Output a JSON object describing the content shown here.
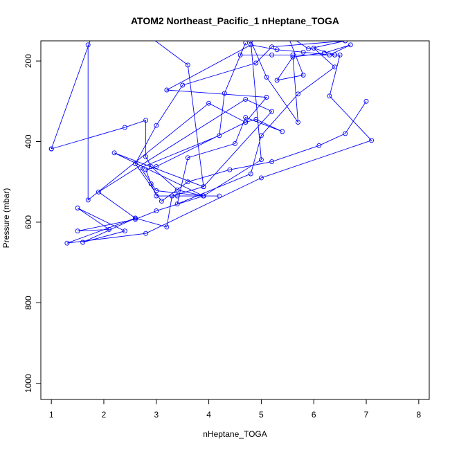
{
  "chart_data": {
    "type": "line",
    "title": "ATOM2 Northeast_Pacific_1 nHeptane_TOGA",
    "xlabel": "nHeptane_TOGA",
    "ylabel": "Pressure (mbar)",
    "xlim": [
      0.8,
      8.2
    ],
    "ylim": [
      150,
      1040
    ],
    "y_reversed": true,
    "x_ticks": [
      1,
      2,
      3,
      4,
      5,
      6,
      7,
      8
    ],
    "y_ticks": [
      200,
      400,
      600,
      800,
      1000
    ],
    "grid": false,
    "legend": "none",
    "color": "#0000ff",
    "marker": "open-circle",
    "series": [
      {
        "points": [
          [
            1.0,
            418
          ],
          [
            2.4,
            365
          ],
          [
            2.8,
            347
          ],
          [
            2.8,
            438
          ],
          [
            2.9,
            462
          ],
          [
            3.4,
            520
          ],
          [
            3.9,
            535
          ],
          [
            3.4,
            535
          ],
          [
            3.3,
            535
          ],
          [
            3.2,
            612
          ],
          [
            2.6,
            590
          ],
          [
            1.6,
            650
          ],
          [
            2.4,
            622
          ],
          [
            1.5,
            565
          ],
          [
            2.1,
            618
          ],
          [
            1.5,
            622
          ],
          [
            2.6,
            593
          ],
          [
            3.0,
            572
          ],
          [
            3.9,
            535
          ],
          [
            4.2,
            535
          ],
          [
            3.0,
            535
          ],
          [
            2.9,
            505
          ],
          [
            2.8,
            470
          ],
          [
            3.0,
            462
          ],
          [
            4.7,
            352
          ],
          [
            4.9,
            345
          ],
          [
            5.4,
            375
          ],
          [
            4.7,
            340
          ],
          [
            4.5,
            405
          ],
          [
            3.6,
            440
          ],
          [
            3.4,
            555
          ],
          [
            4.8,
            480
          ],
          [
            5.0,
            385
          ],
          [
            5.7,
            282
          ],
          [
            6.4,
            215
          ],
          [
            6.0,
            168
          ],
          [
            6.4,
            185
          ],
          [
            6.5,
            185
          ],
          [
            6.3,
            287
          ],
          [
            7.1,
            397
          ],
          [
            5.0,
            490
          ],
          [
            2.8,
            628
          ],
          [
            1.3,
            652
          ],
          [
            2.6,
            590
          ],
          [
            1.9,
            525
          ],
          [
            4.7,
            295
          ],
          [
            5.2,
            325
          ],
          [
            3.9,
            512
          ],
          [
            2.2,
            428
          ],
          [
            3.9,
            535
          ],
          [
            3.0,
            522
          ],
          [
            2.7,
            465
          ],
          [
            4.2,
            385
          ],
          [
            4.3,
            280
          ],
          [
            4.7,
            155
          ],
          [
            4.6,
            185
          ],
          [
            5.2,
            185
          ],
          [
            6.4,
            185
          ],
          [
            5.6,
            185
          ],
          [
            5.7,
            352
          ],
          [
            5.1,
            240
          ],
          [
            4.8,
            150
          ],
          [
            5.0,
            445
          ],
          [
            3.9,
            535
          ],
          [
            3.3,
            535
          ],
          [
            3.9,
            512
          ],
          [
            3.6,
            210
          ],
          [
            2.0,
            55
          ],
          [
            1.0,
            418
          ]
        ]
      },
      {
        "points": [
          [
            1.7,
            160
          ],
          [
            1.7,
            545
          ],
          [
            4.0,
            305
          ],
          [
            4.7,
            352
          ],
          [
            5.1,
            290
          ],
          [
            3.2,
            272
          ],
          [
            4.8,
            160
          ],
          [
            5.3,
            172
          ],
          [
            5.8,
            178
          ],
          [
            6.3,
            185
          ],
          [
            6.7,
            160
          ],
          [
            6.2,
            180
          ],
          [
            5.6,
            190
          ],
          [
            5.3,
            248
          ],
          [
            5.8,
            235
          ],
          [
            5.5,
            135
          ],
          [
            5.9,
            170
          ],
          [
            6.6,
            150
          ],
          [
            5.2,
            165
          ],
          [
            4.9,
            205
          ],
          [
            3.5,
            260
          ],
          [
            3.0,
            360
          ],
          [
            2.6,
            455
          ],
          [
            3.1,
            548
          ],
          [
            3.6,
            500
          ],
          [
            4.4,
            470
          ],
          [
            5.2,
            450
          ],
          [
            6.1,
            410
          ],
          [
            6.6,
            380
          ],
          [
            7.0,
            300
          ]
        ]
      }
    ]
  }
}
